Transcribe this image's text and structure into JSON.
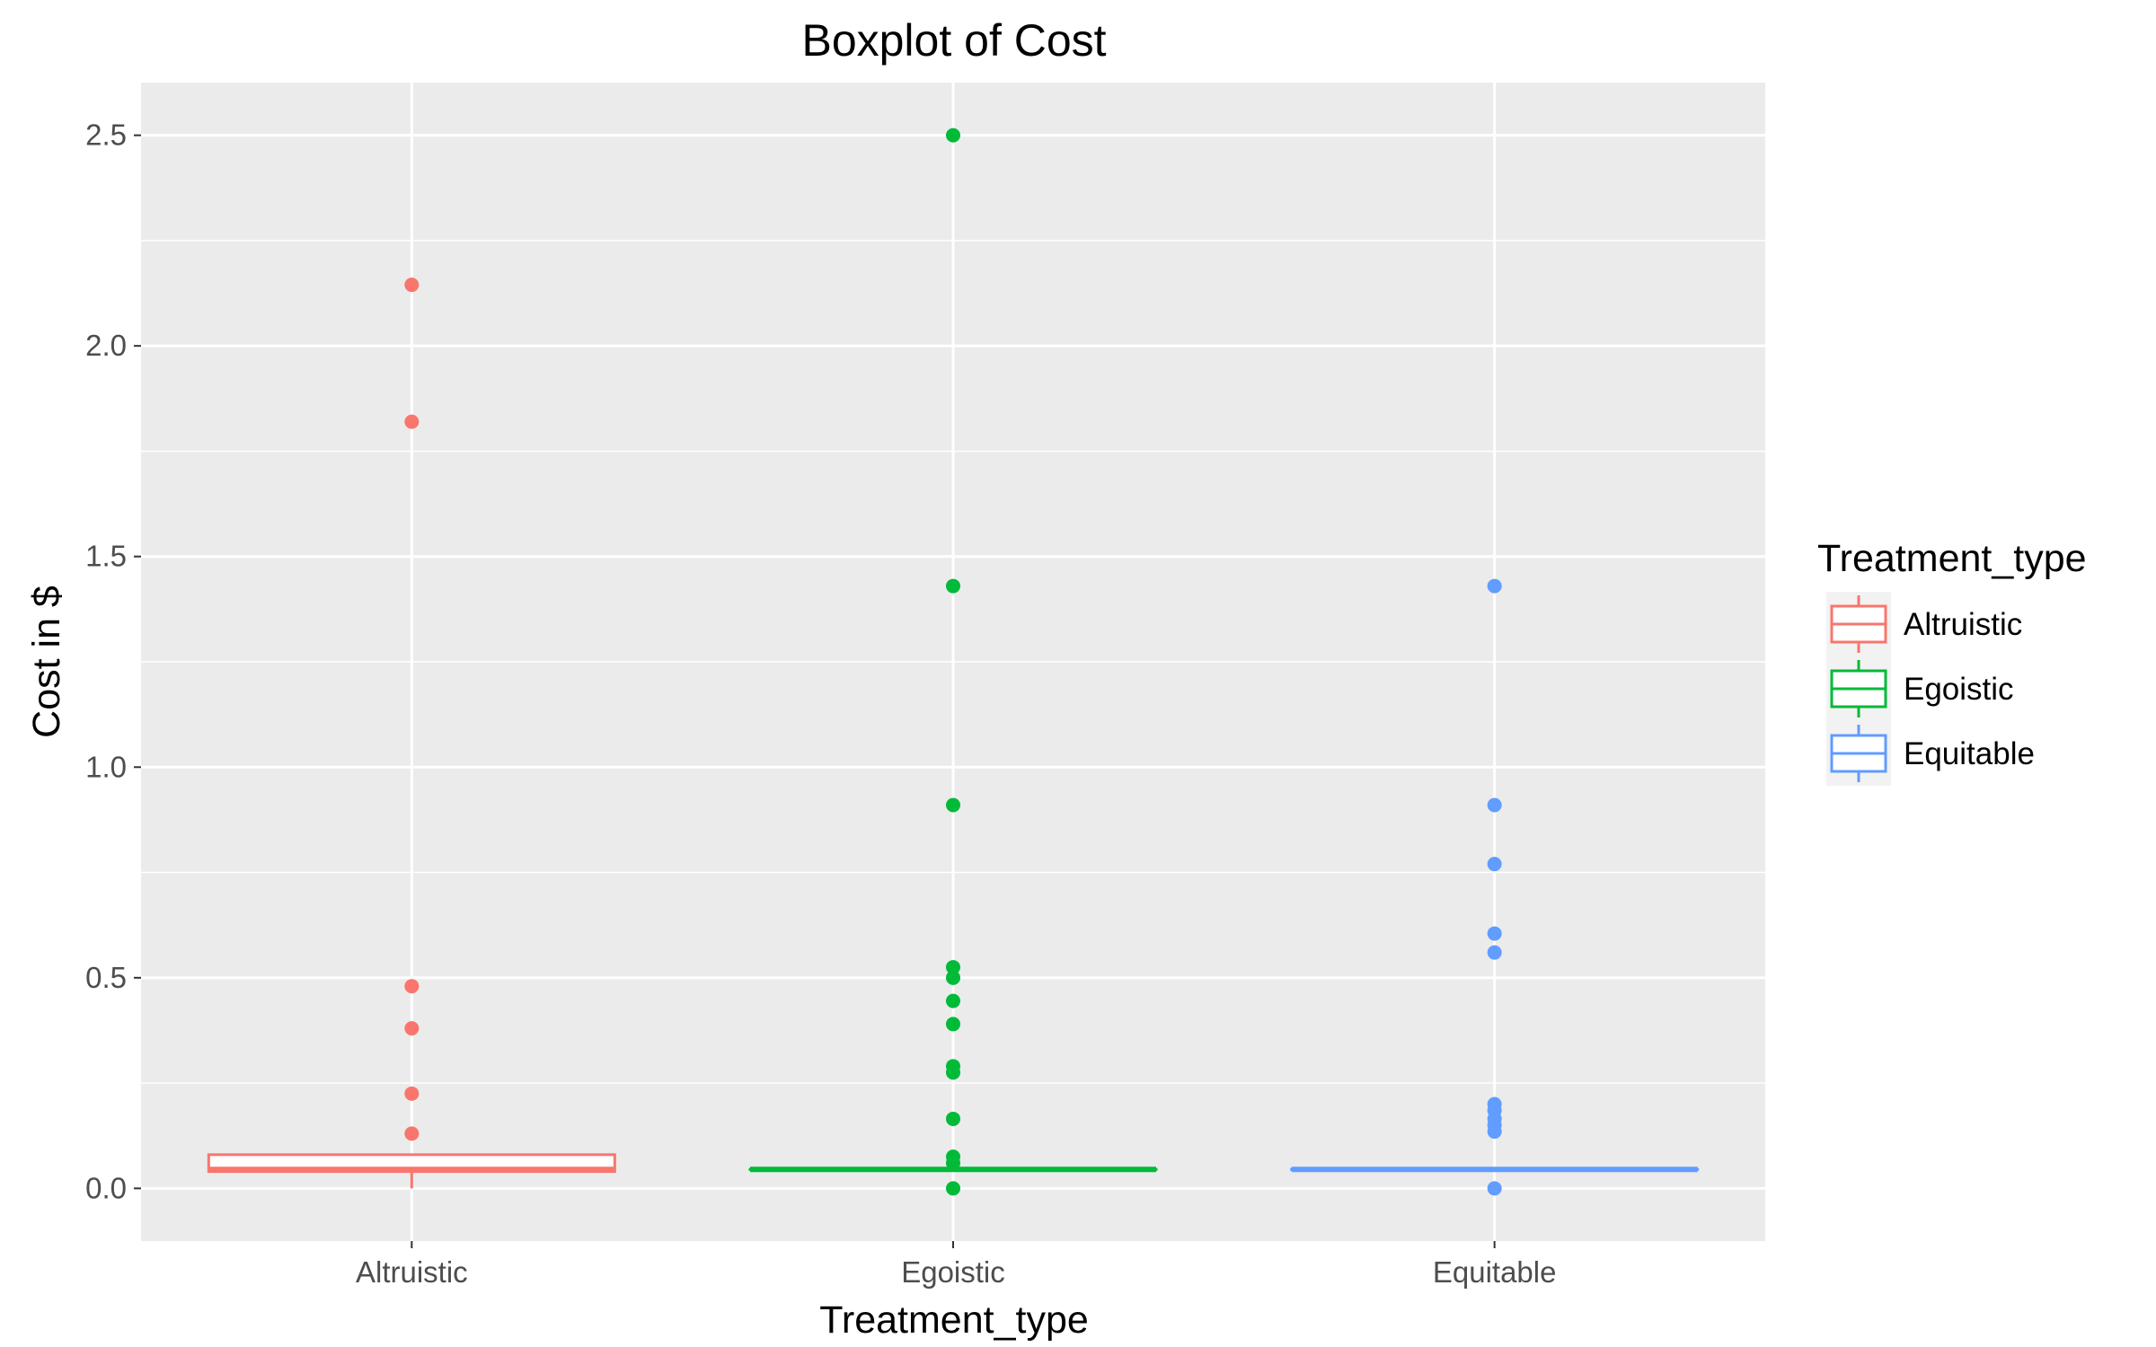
{
  "chart_data": {
    "type": "boxplot",
    "title": "Boxplot of Cost",
    "xlabel": "Treatment_type",
    "ylabel": "Cost in $",
    "ylim": [
      -0.125,
      2.625
    ],
    "yticks": [
      0.0,
      0.5,
      1.0,
      1.5,
      2.0,
      2.5
    ],
    "ytick_labels": [
      "0.0",
      "0.5",
      "1.0",
      "1.5",
      "2.0",
      "2.5"
    ],
    "categories": [
      "Altruistic",
      "Egoistic",
      "Equitable"
    ],
    "grid": true,
    "legend": {
      "title": "Treatment_type",
      "position": "right",
      "entries": [
        "Altruistic",
        "Egoistic",
        "Equitable"
      ]
    },
    "series": [
      {
        "category": "Altruistic",
        "color": "#F8766D",
        "box": {
          "whisker_low": 0.0,
          "q1": 0.04,
          "median": 0.045,
          "q3": 0.08,
          "whisker_high": 0.08
        },
        "outliers": [
          2.145,
          1.82,
          0.48,
          0.38,
          0.225,
          0.13
        ]
      },
      {
        "category": "Egoistic",
        "color": "#00BA38",
        "box": {
          "whisker_low": 0.045,
          "q1": 0.045,
          "median": 0.045,
          "q3": 0.045,
          "whisker_high": 0.045
        },
        "outliers": [
          2.5,
          1.43,
          0.91,
          0.525,
          0.5,
          0.445,
          0.39,
          0.29,
          0.275,
          0.165,
          0.075,
          0.06,
          0.0
        ]
      },
      {
        "category": "Equitable",
        "color": "#619CFF",
        "box": {
          "whisker_low": 0.045,
          "q1": 0.045,
          "median": 0.045,
          "q3": 0.045,
          "whisker_high": 0.045
        },
        "outliers": [
          1.43,
          0.91,
          0.77,
          0.605,
          0.56,
          0.2,
          0.185,
          0.165,
          0.15,
          0.135,
          0.0
        ]
      }
    ]
  }
}
